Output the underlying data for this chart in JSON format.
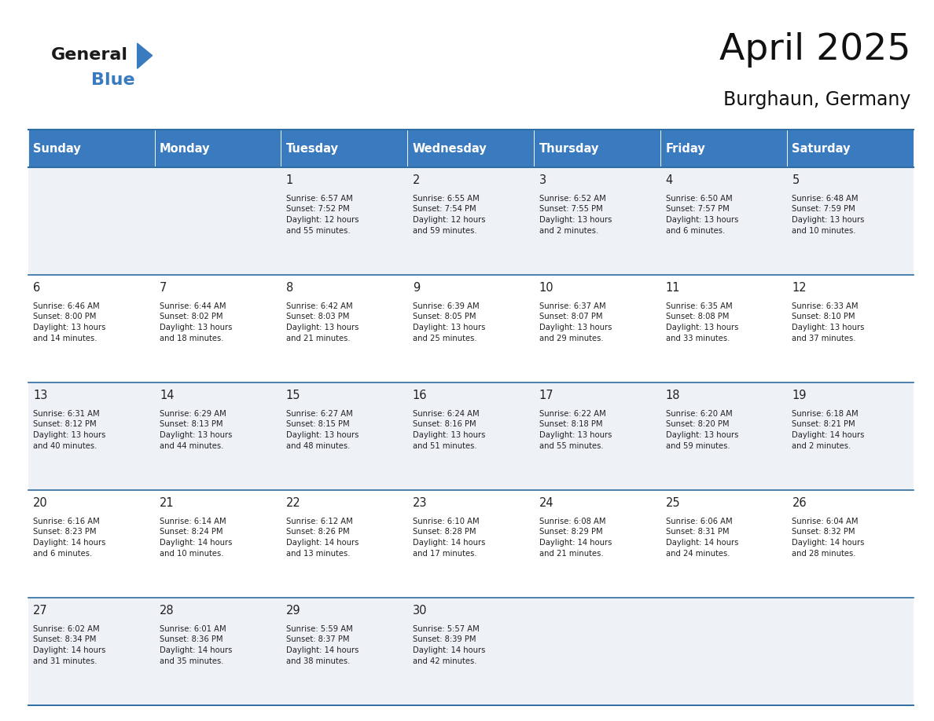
{
  "title": "April 2025",
  "subtitle": "Burghaun, Germany",
  "header_bg": "#3a7bbf",
  "header_text_color": "#ffffff",
  "row_bg_light": "#eef2f7",
  "row_bg_white": "#ffffff",
  "border_color": "#2e6da4",
  "text_color": "#222222",
  "days_of_week": [
    "Sunday",
    "Monday",
    "Tuesday",
    "Wednesday",
    "Thursday",
    "Friday",
    "Saturday"
  ],
  "calendar": [
    [
      {
        "day": "",
        "info": ""
      },
      {
        "day": "",
        "info": ""
      },
      {
        "day": "1",
        "info": "Sunrise: 6:57 AM\nSunset: 7:52 PM\nDaylight: 12 hours\nand 55 minutes."
      },
      {
        "day": "2",
        "info": "Sunrise: 6:55 AM\nSunset: 7:54 PM\nDaylight: 12 hours\nand 59 minutes."
      },
      {
        "day": "3",
        "info": "Sunrise: 6:52 AM\nSunset: 7:55 PM\nDaylight: 13 hours\nand 2 minutes."
      },
      {
        "day": "4",
        "info": "Sunrise: 6:50 AM\nSunset: 7:57 PM\nDaylight: 13 hours\nand 6 minutes."
      },
      {
        "day": "5",
        "info": "Sunrise: 6:48 AM\nSunset: 7:59 PM\nDaylight: 13 hours\nand 10 minutes."
      }
    ],
    [
      {
        "day": "6",
        "info": "Sunrise: 6:46 AM\nSunset: 8:00 PM\nDaylight: 13 hours\nand 14 minutes."
      },
      {
        "day": "7",
        "info": "Sunrise: 6:44 AM\nSunset: 8:02 PM\nDaylight: 13 hours\nand 18 minutes."
      },
      {
        "day": "8",
        "info": "Sunrise: 6:42 AM\nSunset: 8:03 PM\nDaylight: 13 hours\nand 21 minutes."
      },
      {
        "day": "9",
        "info": "Sunrise: 6:39 AM\nSunset: 8:05 PM\nDaylight: 13 hours\nand 25 minutes."
      },
      {
        "day": "10",
        "info": "Sunrise: 6:37 AM\nSunset: 8:07 PM\nDaylight: 13 hours\nand 29 minutes."
      },
      {
        "day": "11",
        "info": "Sunrise: 6:35 AM\nSunset: 8:08 PM\nDaylight: 13 hours\nand 33 minutes."
      },
      {
        "day": "12",
        "info": "Sunrise: 6:33 AM\nSunset: 8:10 PM\nDaylight: 13 hours\nand 37 minutes."
      }
    ],
    [
      {
        "day": "13",
        "info": "Sunrise: 6:31 AM\nSunset: 8:12 PM\nDaylight: 13 hours\nand 40 minutes."
      },
      {
        "day": "14",
        "info": "Sunrise: 6:29 AM\nSunset: 8:13 PM\nDaylight: 13 hours\nand 44 minutes."
      },
      {
        "day": "15",
        "info": "Sunrise: 6:27 AM\nSunset: 8:15 PM\nDaylight: 13 hours\nand 48 minutes."
      },
      {
        "day": "16",
        "info": "Sunrise: 6:24 AM\nSunset: 8:16 PM\nDaylight: 13 hours\nand 51 minutes."
      },
      {
        "day": "17",
        "info": "Sunrise: 6:22 AM\nSunset: 8:18 PM\nDaylight: 13 hours\nand 55 minutes."
      },
      {
        "day": "18",
        "info": "Sunrise: 6:20 AM\nSunset: 8:20 PM\nDaylight: 13 hours\nand 59 minutes."
      },
      {
        "day": "19",
        "info": "Sunrise: 6:18 AM\nSunset: 8:21 PM\nDaylight: 14 hours\nand 2 minutes."
      }
    ],
    [
      {
        "day": "20",
        "info": "Sunrise: 6:16 AM\nSunset: 8:23 PM\nDaylight: 14 hours\nand 6 minutes."
      },
      {
        "day": "21",
        "info": "Sunrise: 6:14 AM\nSunset: 8:24 PM\nDaylight: 14 hours\nand 10 minutes."
      },
      {
        "day": "22",
        "info": "Sunrise: 6:12 AM\nSunset: 8:26 PM\nDaylight: 14 hours\nand 13 minutes."
      },
      {
        "day": "23",
        "info": "Sunrise: 6:10 AM\nSunset: 8:28 PM\nDaylight: 14 hours\nand 17 minutes."
      },
      {
        "day": "24",
        "info": "Sunrise: 6:08 AM\nSunset: 8:29 PM\nDaylight: 14 hours\nand 21 minutes."
      },
      {
        "day": "25",
        "info": "Sunrise: 6:06 AM\nSunset: 8:31 PM\nDaylight: 14 hours\nand 24 minutes."
      },
      {
        "day": "26",
        "info": "Sunrise: 6:04 AM\nSunset: 8:32 PM\nDaylight: 14 hours\nand 28 minutes."
      }
    ],
    [
      {
        "day": "27",
        "info": "Sunrise: 6:02 AM\nSunset: 8:34 PM\nDaylight: 14 hours\nand 31 minutes."
      },
      {
        "day": "28",
        "info": "Sunrise: 6:01 AM\nSunset: 8:36 PM\nDaylight: 14 hours\nand 35 minutes."
      },
      {
        "day": "29",
        "info": "Sunrise: 5:59 AM\nSunset: 8:37 PM\nDaylight: 14 hours\nand 38 minutes."
      },
      {
        "day": "30",
        "info": "Sunrise: 5:57 AM\nSunset: 8:39 PM\nDaylight: 14 hours\nand 42 minutes."
      },
      {
        "day": "",
        "info": ""
      },
      {
        "day": "",
        "info": ""
      },
      {
        "day": "",
        "info": ""
      }
    ]
  ]
}
